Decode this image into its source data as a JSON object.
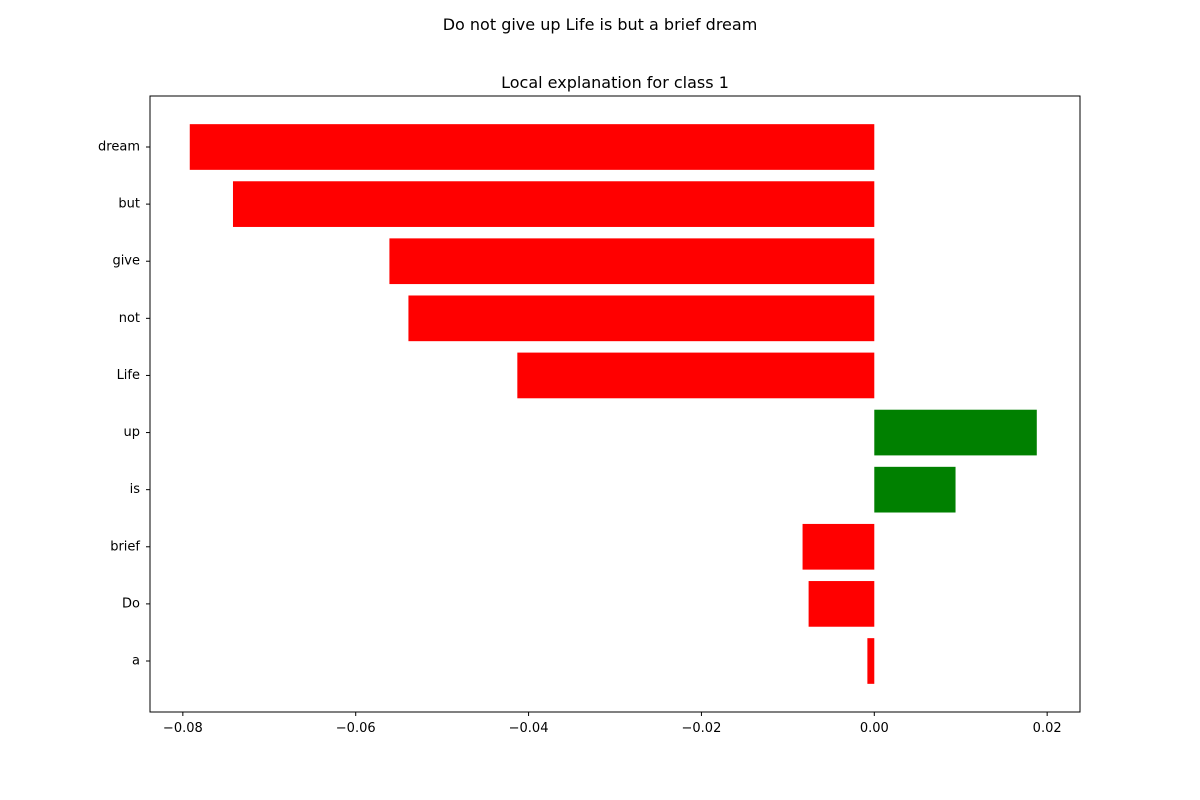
{
  "figure": {
    "suptitle": "Do not give up Life is but a brief dream"
  },
  "chart_data": {
    "type": "bar",
    "orientation": "horizontal",
    "title": "Local explanation for class 1",
    "xlabel": "",
    "ylabel": "",
    "categories": [
      "dream",
      "but",
      "give",
      "not",
      "Life",
      "up",
      "is",
      "brief",
      "Do",
      "a"
    ],
    "values": [
      -0.0792,
      -0.0742,
      -0.0561,
      -0.0539,
      -0.0413,
      0.0188,
      0.0094,
      -0.0083,
      -0.0076,
      -0.0008
    ],
    "xlim": [
      -0.0838,
      0.0238
    ],
    "xticks": [
      -0.08,
      -0.06,
      -0.04,
      -0.02,
      0.0,
      0.02
    ],
    "xtick_labels": [
      "−0.08",
      "−0.06",
      "−0.04",
      "−0.02",
      "0.00",
      "0.02"
    ],
    "grid": false,
    "legend": "none",
    "colors": {
      "positive": "#008000",
      "negative": "#ff0000"
    }
  }
}
